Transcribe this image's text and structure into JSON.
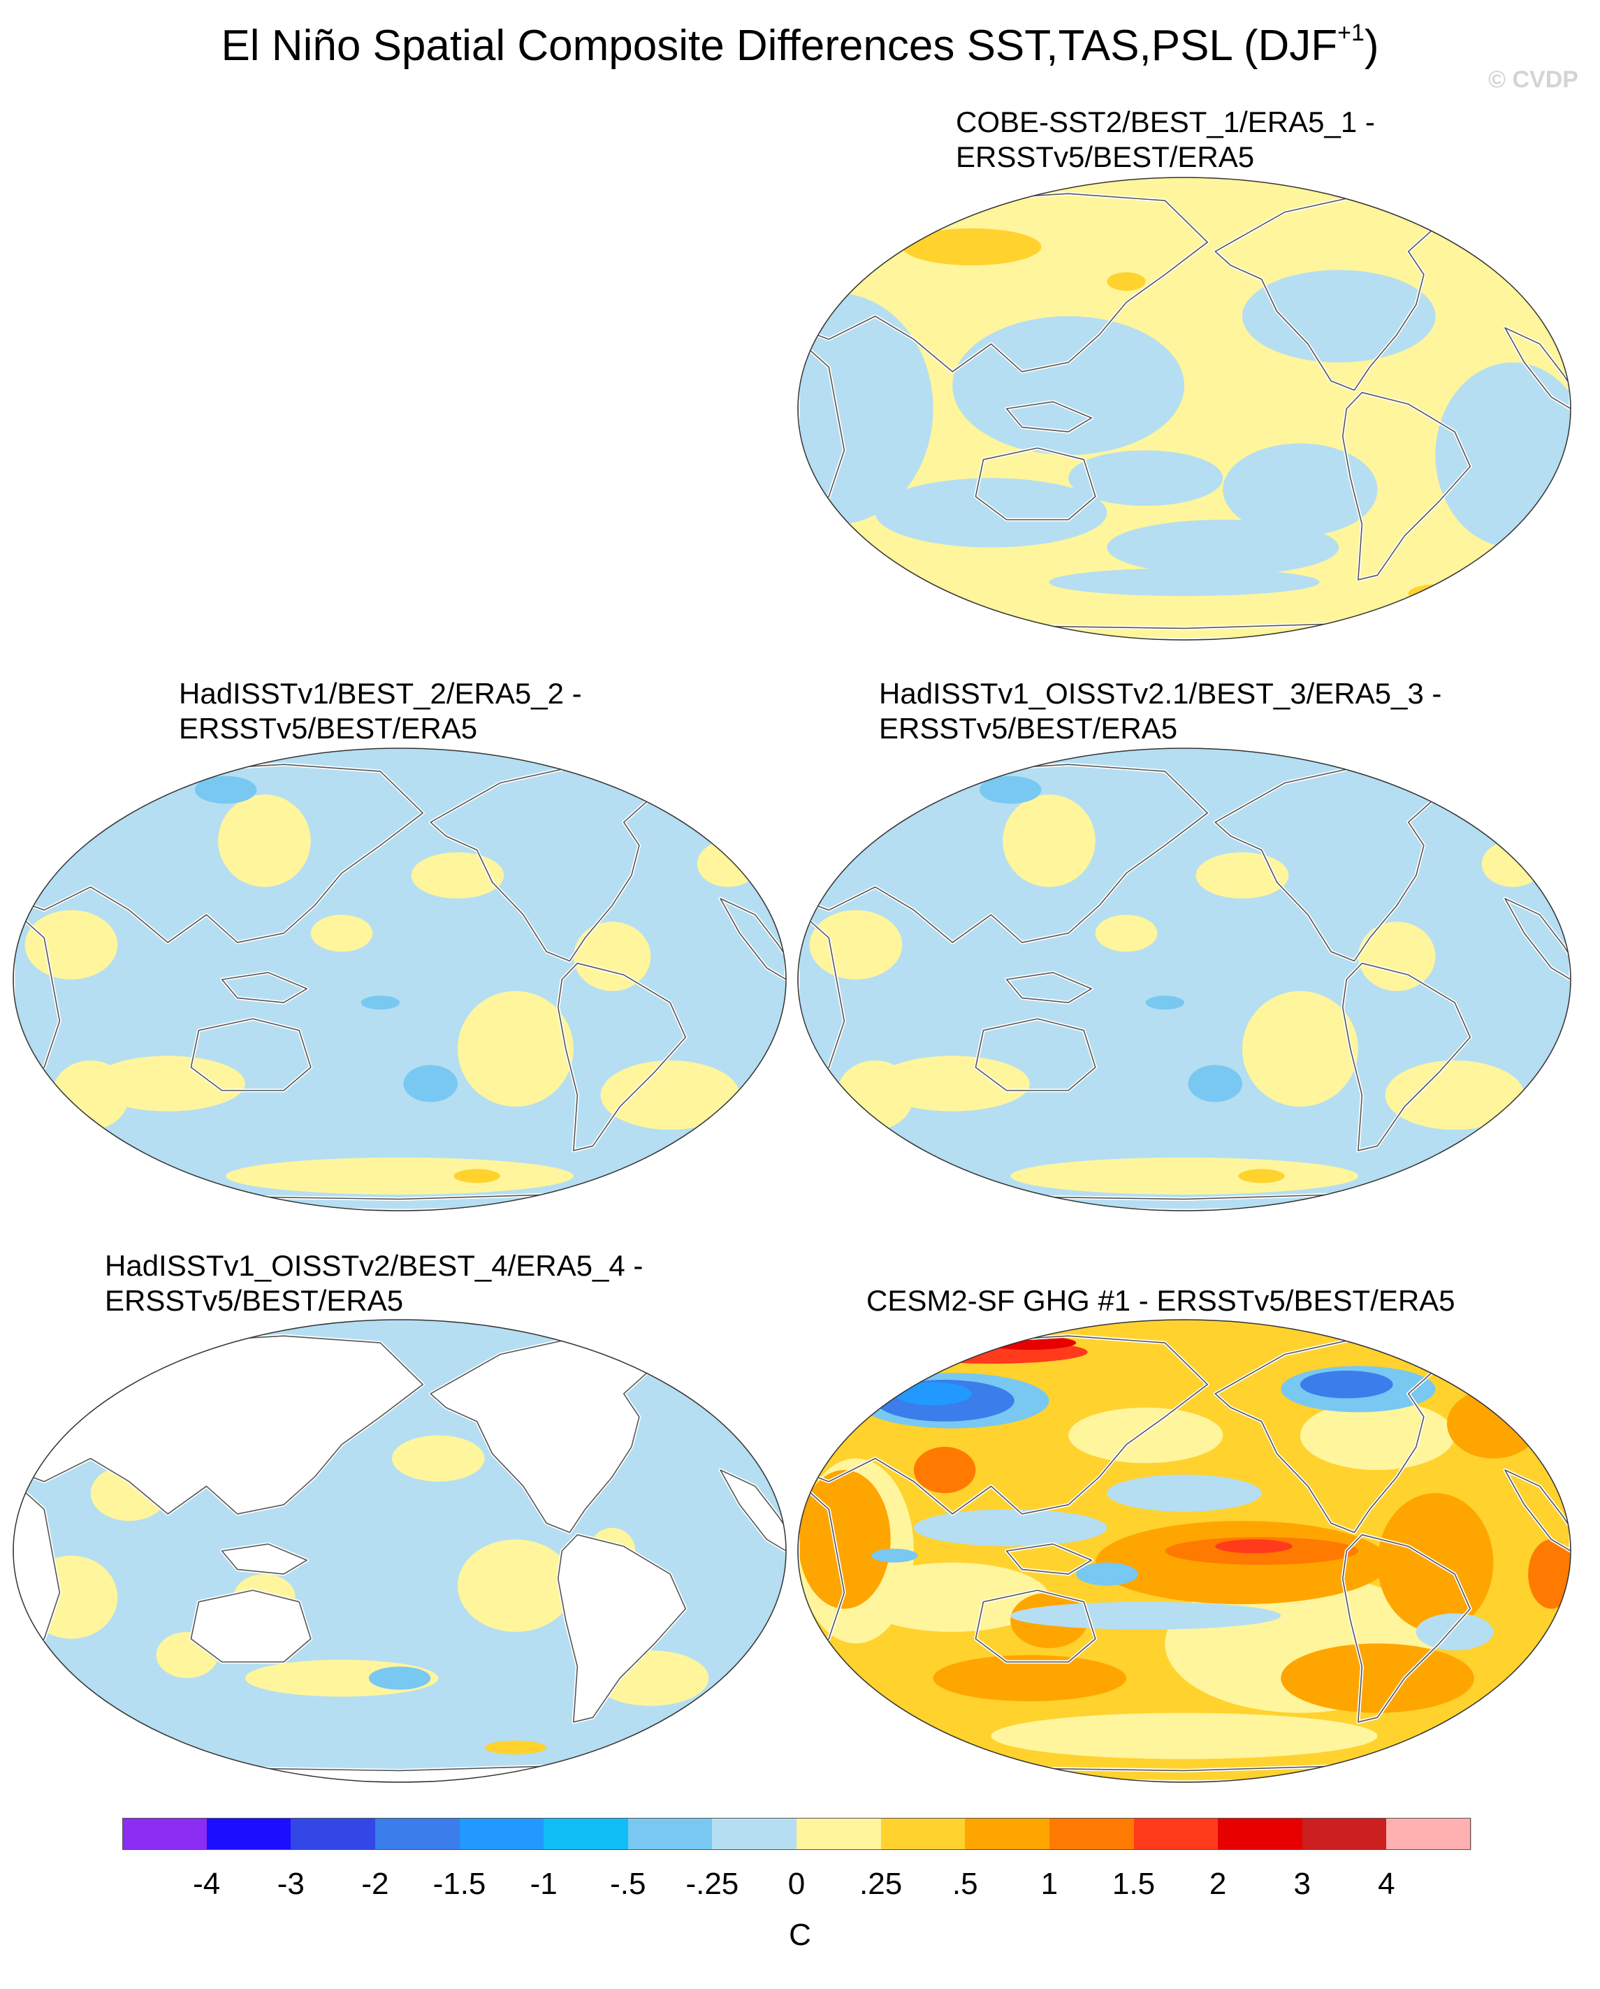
{
  "figure": {
    "title": "El Niño Spatial Composite Differences SST,TAS,PSL (DJF",
    "title_sup": "+1",
    "title_close": ")",
    "watermark": "© CVDP"
  },
  "panels": [
    {
      "id": "p1",
      "line1": "COBE-SST2/BEST_1/ERA5_1 -",
      "line2": "ERSSTv5/BEST/ERA5",
      "mode": "weak"
    },
    {
      "id": "p2",
      "line1": "HadISSTv1/BEST_2/ERA5_2 -",
      "line2": "ERSSTv5/BEST/ERA5",
      "mode": "cool"
    },
    {
      "id": "p3",
      "line1": "HadISSTv1_OISSTv2.1/BEST_3/ERA5_3 -",
      "line2": "ERSSTv5/BEST/ERA5",
      "mode": "cool"
    },
    {
      "id": "p4",
      "line1": "HadISSTv1_OISSTv2/BEST_4/ERA5_4 -",
      "line2": "ERSSTv5/BEST/ERA5",
      "mode": "ocean"
    },
    {
      "id": "p5",
      "line1": "CESM2-SF GHG #1 - ERSSTv5/BEST/ERA5",
      "line2": "",
      "mode": "warm"
    }
  ],
  "colorbar": {
    "colors": [
      "#8b2df2",
      "#1c0fff",
      "#3347e6",
      "#3a7deb",
      "#2299ff",
      "#11bdf5",
      "#78c8f2",
      "#b5def2",
      "#fff59c",
      "#ffd22e",
      "#ffa500",
      "#ff7a00",
      "#ff3b1c",
      "#e60000",
      "#cc1f1f",
      "#ffb0b0"
    ],
    "labels": [
      "-4",
      "-3",
      "-2",
      "-1.5",
      "-1",
      "-.5",
      "-.25",
      "0",
      ".25",
      ".5",
      "1",
      "1.5",
      "2",
      "3",
      "4"
    ],
    "unit": "C"
  }
}
